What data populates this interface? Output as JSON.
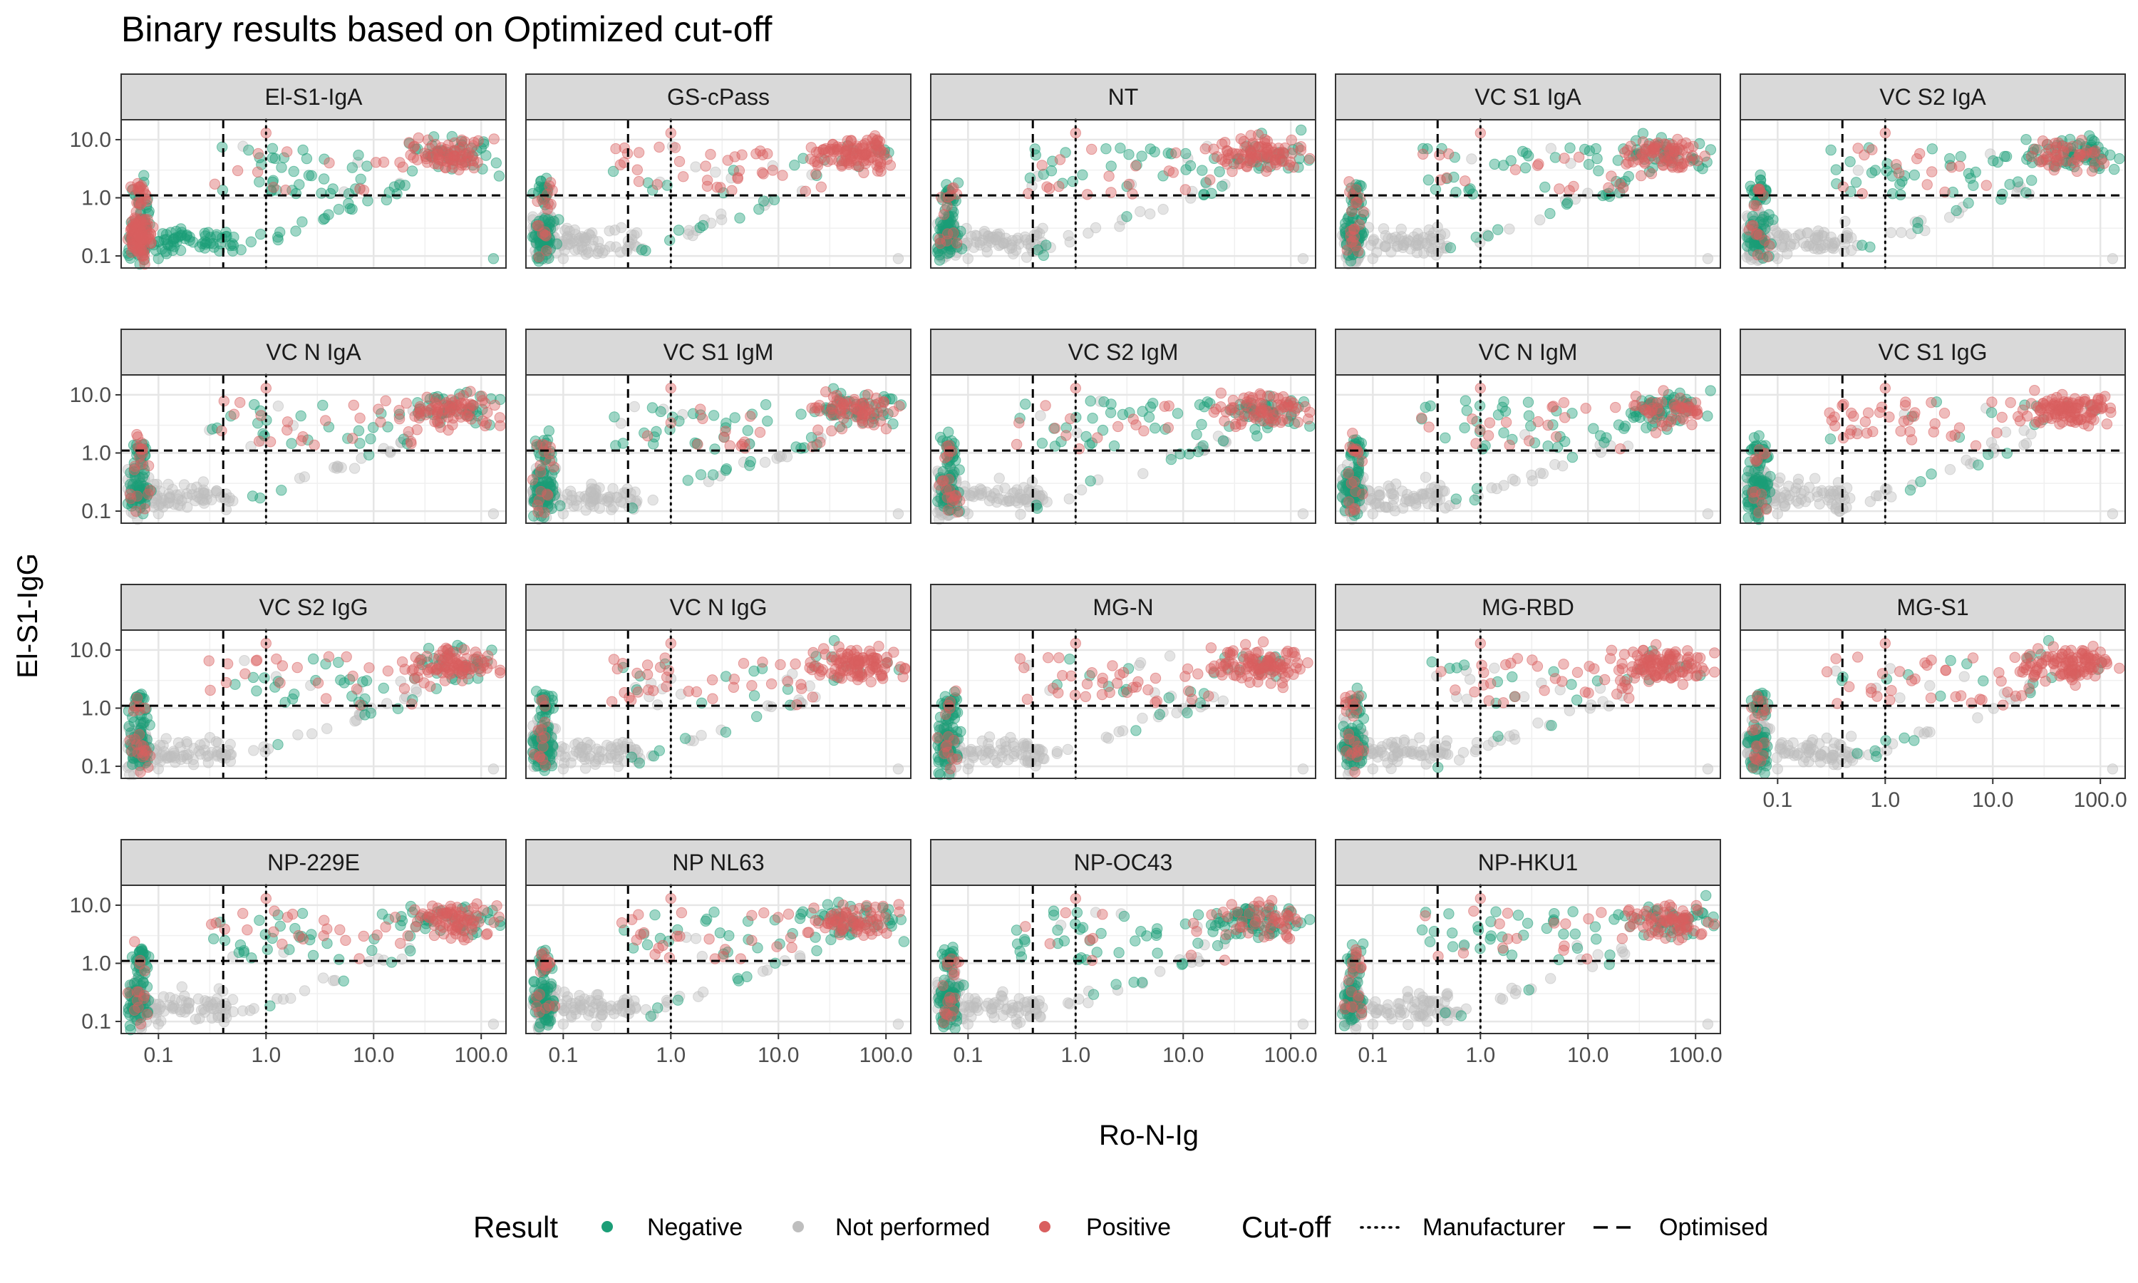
{
  "chart_data": {
    "type": "scatter",
    "title": "Binary results based on Optimized cut-off",
    "xlabel": "Ro-N-Ig",
    "ylabel": "El-S1-IgG",
    "x_scale": "log10",
    "y_scale": "log10",
    "xlim": [
      0.045,
      170
    ],
    "ylim": [
      0.062,
      22
    ],
    "x_ticks": [
      0.1,
      1.0,
      10.0,
      100.0
    ],
    "x_tick_labels": [
      "0.1",
      "1.0",
      "10.0",
      "100.0"
    ],
    "y_ticks": [
      0.1,
      1.0,
      10.0
    ],
    "y_tick_labels": [
      "0.1",
      "1.0",
      "10.0"
    ],
    "grid": true,
    "cutoffs": {
      "manufacturer_x": 1.0,
      "optimised_x": 0.4,
      "optimised_y": 1.1
    },
    "panels": [
      {
        "name": "El-S1-IgA",
        "negative_share": 0.4
      },
      {
        "name": "GS-cPass",
        "negative_share": 0.05
      },
      {
        "name": "NT",
        "negative_share": 0.3
      },
      {
        "name": "VC S1 IgA",
        "negative_share": 0.3
      },
      {
        "name": "VC S2 IgA",
        "negative_share": 0.5
      },
      {
        "name": "VC N IgA",
        "negative_share": 0.3
      },
      {
        "name": "VC S1 IgM",
        "negative_share": 0.45
      },
      {
        "name": "VC S2 IgM",
        "negative_share": 0.35
      },
      {
        "name": "VC N IgM",
        "negative_share": 0.55
      },
      {
        "name": "VC S1 IgG",
        "negative_share": 0.05
      },
      {
        "name": "VC S2 IgG",
        "negative_share": 0.3
      },
      {
        "name": "VC N IgG",
        "negative_share": 0.1
      },
      {
        "name": "MG-N",
        "negative_share": 0.1
      },
      {
        "name": "MG-RBD",
        "negative_share": 0.08
      },
      {
        "name": "MG-S1",
        "negative_share": 0.05
      },
      {
        "name": "NP-229E",
        "negative_share": 0.3
      },
      {
        "name": "NP NL63",
        "negative_share": 0.3
      },
      {
        "name": "NP-OC43",
        "negative_share": 0.6
      },
      {
        "name": "NP-HKU1",
        "negative_share": 0.45
      }
    ],
    "legend": {
      "position": "bottom",
      "result_title": "Result",
      "result_items": [
        {
          "label": "Negative",
          "color": "#1B9E77"
        },
        {
          "label": "Not performed",
          "color": "#BEBEBE"
        },
        {
          "label": "Positive",
          "color": "#D95F5F"
        }
      ],
      "cutoff_title": "Cut-off",
      "cutoff_items": [
        {
          "label": "Manufacturer",
          "style": "dotted"
        },
        {
          "label": "Optimised",
          "style": "dashed"
        }
      ]
    }
  }
}
